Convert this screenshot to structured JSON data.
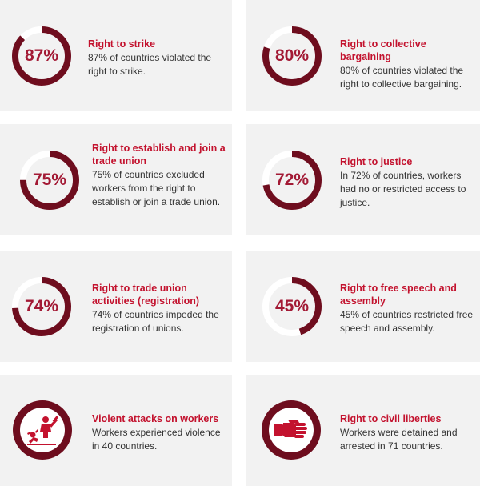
{
  "colors": {
    "ring": "#6e0d1e",
    "track": "#ffffff",
    "title": "#c3122e",
    "pct": "#a31a35",
    "card": "#f2f2f2"
  },
  "cards": [
    {
      "percent": 87,
      "pct_label": "87%",
      "title": "Right to strike",
      "desc": "87% of countries violated the right to strike."
    },
    {
      "percent": 80,
      "pct_label": "80%",
      "title": "Right to collective bargaining",
      "desc": "80% of countries violated the right to collective bargaining."
    },
    {
      "percent": 75,
      "pct_label": "75%",
      "title": "Right to establish and join a trade union",
      "desc": "75% of countries excluded workers from the right to establish or join a trade union."
    },
    {
      "percent": 72,
      "pct_label": "72%",
      "title": "Right to justice",
      "desc": "In 72% of countries, workers had no or restricted access to justice."
    },
    {
      "percent": 74,
      "pct_label": "74%",
      "title": "Right to trade union activities (registration)",
      "desc": "74% of countries impeded the registration of unions."
    },
    {
      "percent": 45,
      "pct_label": "45%",
      "title": "Right to free speech and assembly",
      "desc": "45% of countries restricted free speech and assembly."
    },
    {
      "icon": "violence-icon",
      "title": "Violent attacks on workers",
      "desc": "Workers experienced violence in 40 countries."
    },
    {
      "icon": "fist-icon",
      "title": "Right to civil liberties",
      "desc": "Workers were detained and arrested in 71 countries."
    }
  ]
}
